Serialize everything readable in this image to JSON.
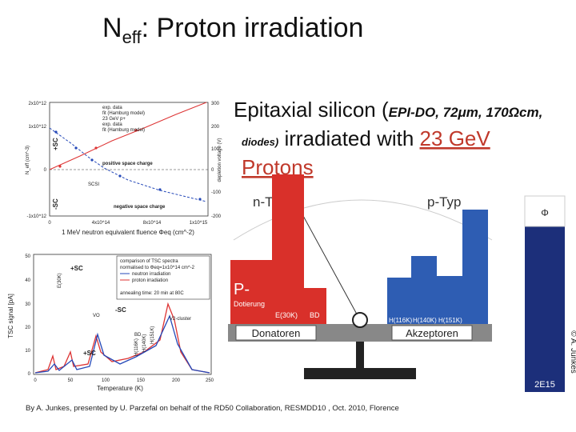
{
  "title": {
    "main": "N",
    "subscript": "eff",
    "rest": ": Proton irradiation"
  },
  "subtitle": {
    "lead": "Epitaxial silicon (",
    "detail": "EPI-DO, 72μm, 170Ωcm,",
    "detail_end": "diodes)",
    "middle": " irradiated with ",
    "energy": "23 GeV",
    "particles": "Protons"
  },
  "fluence_plot": {
    "y_label": "N_eff (cm^-3)",
    "y2_label": "depletion voltage (V)",
    "x_label": "1 MeV neutron equivalent fluence Φeq (cm^-2)",
    "yticks": [
      "2x10^12",
      "1x10^12",
      "0",
      "-1x10^12"
    ],
    "y2ticks": [
      "300",
      "200",
      "100",
      "0",
      "-100",
      "-200"
    ],
    "xticks": [
      "0",
      "4x10^14",
      "8x10^14",
      "1x10^15"
    ],
    "legend": [
      "exp. data",
      "fit (Hamburg model)",
      "23 GeV p+",
      "exp. data",
      "fit (Hamburg model)"
    ],
    "annotations": {
      "plus_sc": "+SC",
      "minus_sc": "-SC",
      "positive": "positive space charge",
      "negative": "negative space charge",
      "scsi": "SCSI"
    }
  },
  "tsc_plot": {
    "y_label": "TSC signal [pA]",
    "x_label": "Temperature (K)",
    "yticks": [
      "50",
      "40",
      "30",
      "20",
      "10",
      "0"
    ],
    "xticks": [
      "0",
      "50",
      "100",
      "150",
      "200",
      "250"
    ],
    "legend": [
      "comparison of TSC spectra",
      "normalised to Φeq=1x10^14 cm^-2",
      "neutron irradiation",
      "proton irradiation",
      "annealing time: 20 min at 80C"
    ],
    "annotations": {
      "e30k": "E(30K)",
      "plus_sc_top": "+SC",
      "minus_sc": "-SC",
      "vo": "VO",
      "v2": "V2-cluster",
      "plus_sc_bottom": "+SC",
      "bd": "BD",
      "h116": "H(116K)",
      "h140": "H(140K)",
      "h151": "H(151K)"
    }
  },
  "balance": {
    "n_type": "n-Typ",
    "p_type": "p-Typ",
    "p_doping": "P-",
    "p_doping_sub": "Dotierung",
    "e30k": "E(30K)",
    "bd": "BD",
    "h116": "H(116K)",
    "h140": "H(140K)",
    "h151": "H(151K)",
    "donors": "Donatoren",
    "acceptors": "Akzeptoren",
    "fluence_symbol": "Φ",
    "fluence_value": "2E15",
    "copyright": "© A. Junkes"
  },
  "footer": "By A. Junkes, presented by U. Parzefal on behalf of the RD50 Collaboration, RESMDD10 , Oct. 2010, Florence"
}
